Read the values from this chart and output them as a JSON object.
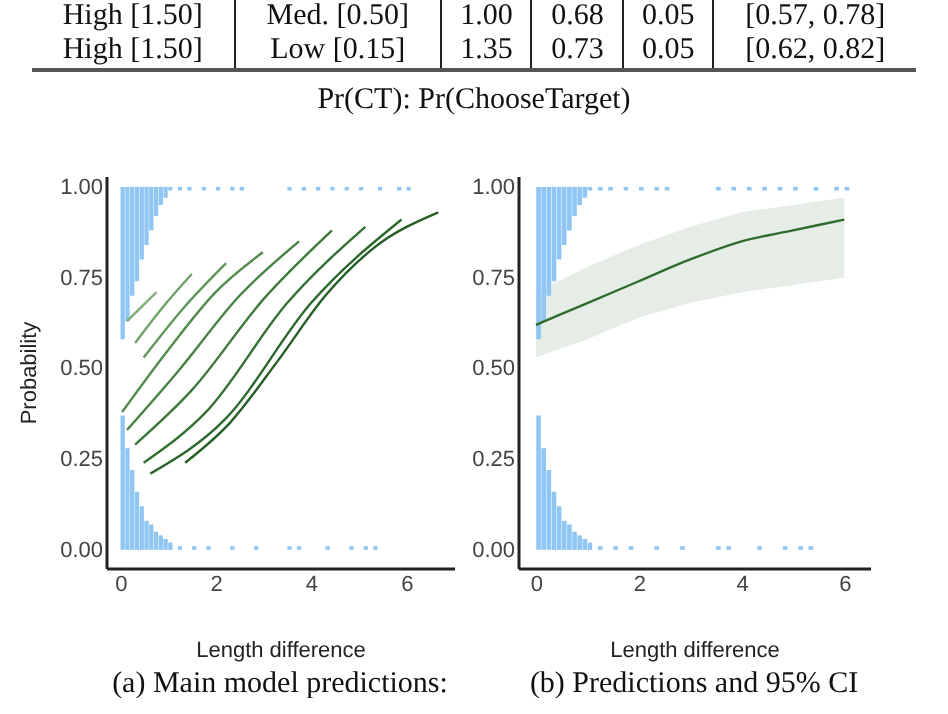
{
  "chart_data": [
    {
      "type": "other",
      "title": "Pr(CT): Pr(ChooseTarget)",
      "annotations": [
        "High [1.50]",
        "Med. [0.50]",
        "1.00",
        "0.68",
        "0.05",
        "[0.57, 0.78]",
        "High [1.50]",
        "Low [0.15]",
        "1.35",
        "0.73",
        "0.05",
        "[0.62, 0.82]"
      ]
    },
    {
      "type": "line",
      "ylabel": "Probability",
      "xlabel": "Length difference",
      "annotations": [
        "(a) Main model predictions:"
      ],
      "xlim": [
        -0.3,
        7.0
      ],
      "ylim": [
        -0.05,
        1.03
      ],
      "xticks": [
        0,
        2,
        4,
        6
      ],
      "yticks": [
        {
          "value": 0,
          "label": "0.00"
        },
        {
          "value": 0.25,
          "label": "0.25"
        },
        {
          "value": 0.5,
          "label": "0.50"
        },
        {
          "value": 0.75,
          "label": "0.75"
        },
        {
          "value": 1,
          "label": "1.00"
        }
      ],
      "series": [
        {
          "type": "bar",
          "color": "#90c6f4",
          "x": [
            0.05,
            0.15,
            0.25,
            0.35,
            0.45,
            0.55,
            0.65,
            0.75,
            0.85,
            0.95,
            1.05,
            1.25,
            1.45,
            1.75,
            2.05,
            2.35,
            2.55,
            3.55,
            3.85,
            4.15,
            4.45,
            4.75,
            5.05,
            5.45,
            5.85,
            6.05
          ],
          "base": [
            1,
            1,
            1,
            1,
            1,
            1,
            1,
            1,
            1,
            1,
            1,
            1,
            1,
            1,
            1,
            1,
            1,
            1,
            1,
            1,
            1,
            1,
            1,
            1,
            1,
            1
          ],
          "values": [
            -0.42,
            -0.37,
            -0.3,
            -0.26,
            -0.2,
            -0.16,
            -0.12,
            -0.08,
            -0.05,
            -0.03,
            -0.01,
            -0.01,
            -0.01,
            -0.01,
            -0.01,
            -0.01,
            -0.01,
            -0.01,
            -0.01,
            -0.01,
            -0.01,
            -0.01,
            -0.01,
            -0.01,
            -0.01,
            -0.01
          ]
        },
        {
          "type": "bar",
          "color": "#90c6f4",
          "x": [
            0.05,
            0.15,
            0.25,
            0.35,
            0.45,
            0.55,
            0.65,
            0.75,
            0.85,
            0.95,
            1.05,
            1.25,
            1.55,
            1.85,
            2.35,
            2.85,
            3.55,
            3.75,
            4.35,
            4.85,
            5.15,
            5.35
          ],
          "values": [
            0.37,
            0.28,
            0.22,
            0.16,
            0.12,
            0.08,
            0.07,
            0.05,
            0.04,
            0.03,
            0.02,
            0.01,
            0.01,
            0.01,
            0.01,
            0.01,
            0.01,
            0.01,
            0.01,
            0.01,
            0.01,
            0.01
          ]
        },
        {
          "type": "line",
          "color": "#7fae78",
          "x": [
            0.14,
            0.45,
            0.76
          ],
          "values": [
            0.63,
            0.67,
            0.71
          ]
        },
        {
          "type": "line",
          "color": "#6fa268",
          "x": [
            0.31,
            0.9,
            1.5
          ],
          "values": [
            0.57,
            0.67,
            0.76
          ]
        },
        {
          "type": "line",
          "color": "#5f965a",
          "x": [
            0.49,
            1.35,
            2.22
          ],
          "values": [
            0.53,
            0.67,
            0.79
          ]
        },
        {
          "type": "line",
          "color": "#528c4d",
          "x": [
            0.04,
            1,
            2,
            2.99
          ],
          "values": [
            0.38,
            0.55,
            0.71,
            0.82
          ]
        },
        {
          "type": "line",
          "color": "#478243",
          "x": [
            0.14,
            1.2,
            2.5,
            3.75
          ],
          "values": [
            0.33,
            0.49,
            0.7,
            0.85
          ]
        },
        {
          "type": "line",
          "color": "#3d793a",
          "x": [
            0.31,
            1.5,
            3,
            4.44
          ],
          "values": [
            0.29,
            0.44,
            0.69,
            0.88
          ]
        },
        {
          "type": "line",
          "color": "#347032",
          "x": [
            0.49,
            1.8,
            3.5,
            5.14
          ],
          "values": [
            0.24,
            0.38,
            0.68,
            0.89
          ]
        },
        {
          "type": "line",
          "color": "#2c672b",
          "x": [
            0.63,
            2.2,
            4,
            5.9
          ],
          "values": [
            0.21,
            0.36,
            0.68,
            0.91
          ]
        },
        {
          "type": "line",
          "color": "#255f25",
          "x": [
            1.36,
            2.3,
            3.3,
            4.3,
            5.3,
            6.67
          ],
          "values": [
            0.24,
            0.35,
            0.52,
            0.7,
            0.83,
            0.93
          ]
        }
      ]
    },
    {
      "type": "line",
      "xlabel": "Length difference",
      "annotations": [
        "(b) Predictions and 95% CI"
      ],
      "xlim": [
        -0.35,
        6.5
      ],
      "ylim": [
        -0.05,
        1.03
      ],
      "xticks": [
        0,
        2,
        4,
        6
      ],
      "yticks": [
        {
          "value": 0,
          "label": "0.00"
        },
        {
          "value": 0.25,
          "label": "0.25"
        },
        {
          "value": 0.5,
          "label": "0.50"
        },
        {
          "value": 0.75,
          "label": "0.75"
        },
        {
          "value": 1,
          "label": "1.00"
        }
      ],
      "series": [
        {
          "type": "bar",
          "color": "#90c6f4",
          "x": [
            0.05,
            0.15,
            0.25,
            0.35,
            0.45,
            0.55,
            0.65,
            0.75,
            0.85,
            0.95,
            1.05,
            1.25,
            1.45,
            1.75,
            2.05,
            2.35,
            2.55,
            3.55,
            3.85,
            4.15,
            4.45,
            4.75,
            5.05,
            5.45,
            5.85,
            6.05
          ],
          "base": [
            1,
            1,
            1,
            1,
            1,
            1,
            1,
            1,
            1,
            1,
            1,
            1,
            1,
            1,
            1,
            1,
            1,
            1,
            1,
            1,
            1,
            1,
            1,
            1,
            1,
            1
          ],
          "values": [
            -0.42,
            -0.37,
            -0.3,
            -0.26,
            -0.2,
            -0.16,
            -0.12,
            -0.08,
            -0.05,
            -0.03,
            -0.01,
            -0.01,
            -0.01,
            -0.01,
            -0.01,
            -0.01,
            -0.01,
            -0.01,
            -0.01,
            -0.01,
            -0.01,
            -0.01,
            -0.01,
            -0.01,
            -0.01,
            -0.01
          ]
        },
        {
          "type": "bar",
          "color": "#90c6f4",
          "x": [
            0.05,
            0.15,
            0.25,
            0.35,
            0.45,
            0.55,
            0.65,
            0.75,
            0.85,
            0.95,
            1.05,
            1.25,
            1.55,
            1.85,
            2.35,
            2.85,
            3.55,
            3.75,
            4.35,
            4.85,
            5.15,
            5.35
          ],
          "values": [
            0.37,
            0.28,
            0.22,
            0.16,
            0.12,
            0.08,
            0.07,
            0.05,
            0.04,
            0.03,
            0.02,
            0.01,
            0.01,
            0.01,
            0.01,
            0.01,
            0.01,
            0.01,
            0.01,
            0.01,
            0.01,
            0.01
          ]
        },
        {
          "type": "line",
          "color": "#2f6b2e",
          "x": [
            0,
            1,
            2,
            3,
            4,
            5,
            6
          ],
          "values": [
            0.62,
            0.68,
            0.74,
            0.8,
            0.85,
            0.88,
            0.91
          ],
          "lower": [
            0.53,
            0.58,
            0.64,
            0.68,
            0.71,
            0.73,
            0.75
          ],
          "upper": [
            0.71,
            0.78,
            0.84,
            0.89,
            0.93,
            0.95,
            0.97
          ]
        }
      ]
    }
  ]
}
